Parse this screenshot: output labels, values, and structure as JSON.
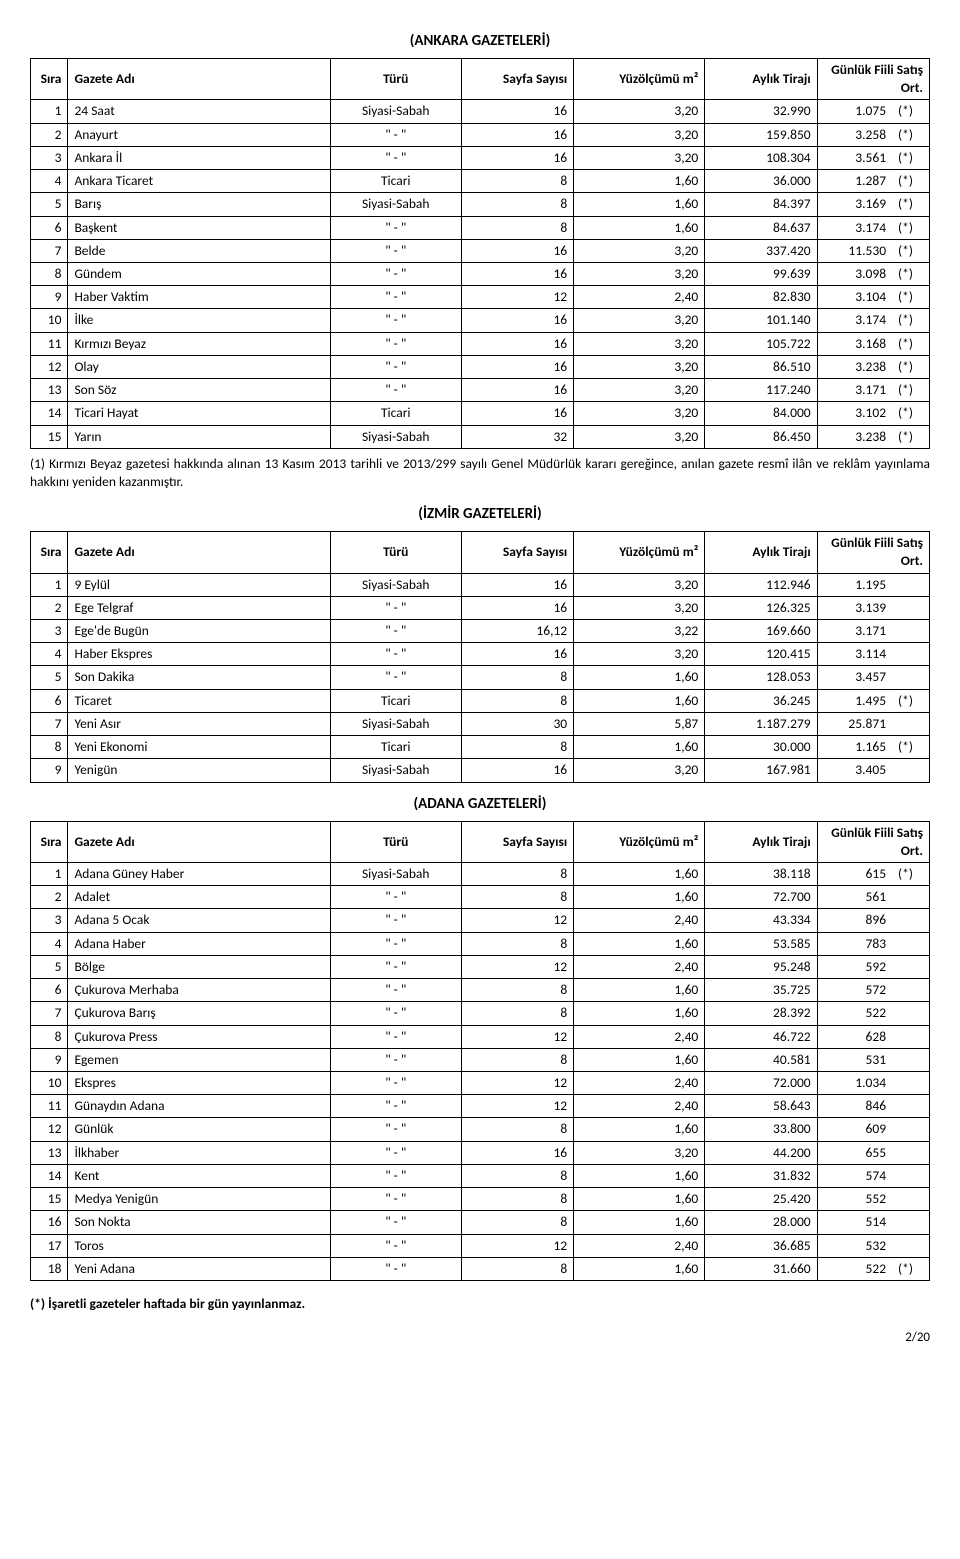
{
  "headers": {
    "sira": "Sıra",
    "ad": "Gazete Adı",
    "tur": "Türü",
    "sayfa": "Sayfa Sayısı",
    "yuz": "Yüzölçümü m²",
    "tiraj": "Aylık Tirajı",
    "satis": "Günlük Fiili Satış Ort."
  },
  "sections": [
    {
      "title": "(ANKARA GAZETELERİ)",
      "rows": [
        {
          "n": "1",
          "ad": "24 Saat",
          "tur": "Siyasi-Sabah",
          "sayfa": "16",
          "yuz": "3,20",
          "tiraj": "32.990",
          "satis": "1.075",
          "star": "(*)"
        },
        {
          "n": "2",
          "ad": "Anayurt",
          "tur": "\"   -   \"",
          "sayfa": "16",
          "yuz": "3,20",
          "tiraj": "159.850",
          "satis": "3.258",
          "star": "(*)"
        },
        {
          "n": "3",
          "ad": "Ankara İl",
          "tur": "\"   -   \"",
          "sayfa": "16",
          "yuz": "3,20",
          "tiraj": "108.304",
          "satis": "3.561",
          "star": "(*)"
        },
        {
          "n": "4",
          "ad": "Ankara Ticaret",
          "tur": "Ticari",
          "sayfa": "8",
          "yuz": "1,60",
          "tiraj": "36.000",
          "satis": "1.287",
          "star": "(*)"
        },
        {
          "n": "5",
          "ad": "Barış",
          "tur": "Siyasi-Sabah",
          "sayfa": "8",
          "yuz": "1,60",
          "tiraj": "84.397",
          "satis": "3.169",
          "star": "(*)"
        },
        {
          "n": "6",
          "ad": "Başkent",
          "tur": "\"   -   \"",
          "sayfa": "8",
          "yuz": "1,60",
          "tiraj": "84.637",
          "satis": "3.174",
          "star": "(*)"
        },
        {
          "n": "7",
          "ad": "Belde",
          "tur": "\"   -   \"",
          "sayfa": "16",
          "yuz": "3,20",
          "tiraj": "337.420",
          "satis": "11.530",
          "star": "(*)"
        },
        {
          "n": "8",
          "ad": "Gündem",
          "tur": "\"   -   \"",
          "sayfa": "16",
          "yuz": "3,20",
          "tiraj": "99.639",
          "satis": "3.098",
          "star": "(*)"
        },
        {
          "n": "9",
          "ad": "Haber Vaktim",
          "tur": "\"   -   \"",
          "sayfa": "12",
          "yuz": "2,40",
          "tiraj": "82.830",
          "satis": "3.104",
          "star": "(*)"
        },
        {
          "n": "10",
          "ad": "İlke",
          "tur": "\"   -   \"",
          "sayfa": "16",
          "yuz": "3,20",
          "tiraj": "101.140",
          "satis": "3.174",
          "star": "(*)"
        },
        {
          "n": "11",
          "ad": "Kırmızı Beyaz",
          "tur": "\"   -   \"",
          "sayfa": "16",
          "yuz": "3,20",
          "tiraj": "105.722",
          "satis": "3.168",
          "star": "(*)"
        },
        {
          "n": "12",
          "ad": "Olay",
          "tur": "\"   -   \"",
          "sayfa": "16",
          "yuz": "3,20",
          "tiraj": "86.510",
          "satis": "3.238",
          "star": "(*)"
        },
        {
          "n": "13",
          "ad": "Son Söz",
          "tur": "\"   -   \"",
          "sayfa": "16",
          "yuz": "3,20",
          "tiraj": "117.240",
          "satis": "3.171",
          "star": "(*)"
        },
        {
          "n": "14",
          "ad": "Ticari Hayat",
          "tur": "Ticari",
          "sayfa": "16",
          "yuz": "3,20",
          "tiraj": "84.000",
          "satis": "3.102",
          "star": "(*)"
        },
        {
          "n": "15",
          "ad": "Yarın",
          "tur": "Siyasi-Sabah",
          "sayfa": "32",
          "yuz": "3,20",
          "tiraj": "86.450",
          "satis": "3.238",
          "star": "(*)"
        }
      ],
      "note": "(1) Kırmızı Beyaz gazetesi hakkında alınan 13 Kasım 2013 tarihli ve 2013/299 sayılı Genel Müdürlük kararı gereğince, anılan gazete resmî ilân ve reklâm yayınlama hakkını yeniden kazanmıştır."
    },
    {
      "title": "(İZMİR GAZETELERİ)",
      "rows": [
        {
          "n": "1",
          "ad": "9 Eylül",
          "tur": "Siyasi-Sabah",
          "sayfa": "16",
          "yuz": "3,20",
          "tiraj": "112.946",
          "satis": "1.195",
          "star": ""
        },
        {
          "n": "2",
          "ad": "Ege Telgraf",
          "tur": "\"   -   \"",
          "sayfa": "16",
          "yuz": "3,20",
          "tiraj": "126.325",
          "satis": "3.139",
          "star": ""
        },
        {
          "n": "3",
          "ad": "Ege'de Bugün",
          "tur": "\"   -   \"",
          "sayfa": "16,12",
          "yuz": "3,22",
          "tiraj": "169.660",
          "satis": "3.171",
          "star": ""
        },
        {
          "n": "4",
          "ad": "Haber Ekspres",
          "tur": "\"   -   \"",
          "sayfa": "16",
          "yuz": "3,20",
          "tiraj": "120.415",
          "satis": "3.114",
          "star": ""
        },
        {
          "n": "5",
          "ad": "Son Dakika",
          "tur": "\"   -   \"",
          "sayfa": "8",
          "yuz": "1,60",
          "tiraj": "128.053",
          "satis": "3.457",
          "star": ""
        },
        {
          "n": "6",
          "ad": "Ticaret",
          "tur": "Ticari",
          "sayfa": "8",
          "yuz": "1,60",
          "tiraj": "36.245",
          "satis": "1.495",
          "star": "(*)"
        },
        {
          "n": "7",
          "ad": "Yeni Asır",
          "tur": "Siyasi-Sabah",
          "sayfa": "30",
          "yuz": "5,87",
          "tiraj": "1.187.279",
          "satis": "25.871",
          "star": ""
        },
        {
          "n": "8",
          "ad": "Yeni Ekonomi",
          "tur": "Ticari",
          "sayfa": "8",
          "yuz": "1,60",
          "tiraj": "30.000",
          "satis": "1.165",
          "star": "(*)"
        },
        {
          "n": "9",
          "ad": "Yenigün",
          "tur": "Siyasi-Sabah",
          "sayfa": "16",
          "yuz": "3,20",
          "tiraj": "167.981",
          "satis": "3.405",
          "star": ""
        }
      ]
    },
    {
      "title": "(ADANA GAZETELERİ)",
      "rows": [
        {
          "n": "1",
          "ad": "Adana Güney Haber",
          "tur": "Siyasi-Sabah",
          "sayfa": "8",
          "yuz": "1,60",
          "tiraj": "38.118",
          "satis": "615",
          "star": "(*)"
        },
        {
          "n": "2",
          "ad": "Adalet",
          "tur": "\"   -   \"",
          "sayfa": "8",
          "yuz": "1,60",
          "tiraj": "72.700",
          "satis": "561",
          "star": ""
        },
        {
          "n": "3",
          "ad": "Adana 5 Ocak",
          "tur": "\"   -   \"",
          "sayfa": "12",
          "yuz": "2,40",
          "tiraj": "43.334",
          "satis": "896",
          "star": ""
        },
        {
          "n": "4",
          "ad": "Adana Haber",
          "tur": "\"   -   \"",
          "sayfa": "8",
          "yuz": "1,60",
          "tiraj": "53.585",
          "satis": "783",
          "star": ""
        },
        {
          "n": "5",
          "ad": "Bölge",
          "tur": "\"   -   \"",
          "sayfa": "12",
          "yuz": "2,40",
          "tiraj": "95.248",
          "satis": "592",
          "star": ""
        },
        {
          "n": "6",
          "ad": "Çukurova Merhaba",
          "tur": "\"   -   \"",
          "sayfa": "8",
          "yuz": "1,60",
          "tiraj": "35.725",
          "satis": "572",
          "star": ""
        },
        {
          "n": "7",
          "ad": "Çukurova Barış",
          "tur": "\"   -   \"",
          "sayfa": "8",
          "yuz": "1,60",
          "tiraj": "28.392",
          "satis": "522",
          "star": ""
        },
        {
          "n": "8",
          "ad": "Çukurova Press",
          "tur": "\"   -   \"",
          "sayfa": "12",
          "yuz": "2,40",
          "tiraj": "46.722",
          "satis": "628",
          "star": ""
        },
        {
          "n": "9",
          "ad": "Egemen",
          "tur": "\"   -   \"",
          "sayfa": "8",
          "yuz": "1,60",
          "tiraj": "40.581",
          "satis": "531",
          "star": ""
        },
        {
          "n": "10",
          "ad": "Ekspres",
          "tur": "\"   -   \"",
          "sayfa": "12",
          "yuz": "2,40",
          "tiraj": "72.000",
          "satis": "1.034",
          "star": ""
        },
        {
          "n": "11",
          "ad": "Günaydın Adana",
          "tur": "\"   -   \"",
          "sayfa": "12",
          "yuz": "2,40",
          "tiraj": "58.643",
          "satis": "846",
          "star": ""
        },
        {
          "n": "12",
          "ad": "Günlük",
          "tur": "\"   -   \"",
          "sayfa": "8",
          "yuz": "1,60",
          "tiraj": "33.800",
          "satis": "609",
          "star": ""
        },
        {
          "n": "13",
          "ad": "İlkhaber",
          "tur": "\"   -   \"",
          "sayfa": "16",
          "yuz": "3,20",
          "tiraj": "44.200",
          "satis": "655",
          "star": ""
        },
        {
          "n": "14",
          "ad": "Kent",
          "tur": "\"   -   \"",
          "sayfa": "8",
          "yuz": "1,60",
          "tiraj": "31.832",
          "satis": "574",
          "star": ""
        },
        {
          "n": "15",
          "ad": "Medya Yenigün",
          "tur": "\"   -   \"",
          "sayfa": "8",
          "yuz": "1,60",
          "tiraj": "25.420",
          "satis": "552",
          "star": ""
        },
        {
          "n": "16",
          "ad": "Son Nokta",
          "tur": "\"   -   \"",
          "sayfa": "8",
          "yuz": "1,60",
          "tiraj": "28.000",
          "satis": "514",
          "star": ""
        },
        {
          "n": "17",
          "ad": "Toros",
          "tur": "\"   -   \"",
          "sayfa": "12",
          "yuz": "2,40",
          "tiraj": "36.685",
          "satis": "532",
          "star": ""
        },
        {
          "n": "18",
          "ad": "Yeni Adana",
          "tur": "\"   -   \"",
          "sayfa": "8",
          "yuz": "1,60",
          "tiraj": "31.660",
          "satis": "522",
          "star": "(*)"
        }
      ]
    }
  ],
  "footer_note": "(*) İşaretli gazeteler haftada bir gün yayınlanmaz.",
  "page_num": "2/20"
}
